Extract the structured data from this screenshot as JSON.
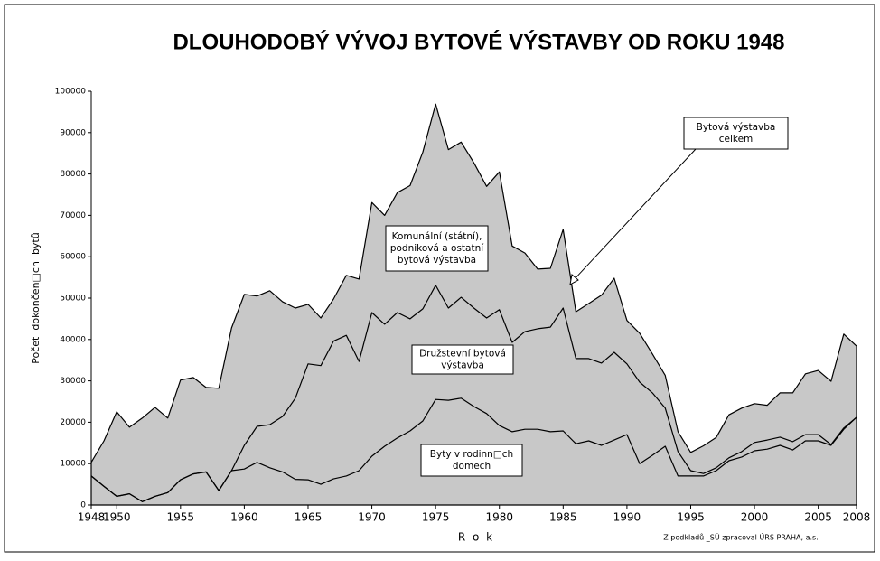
{
  "chart_data": {
    "type": "line",
    "title": "DLOUHODOBÝ VÝVOJ BYTOVÉ VÝSTAVBY OD ROKU 1948",
    "x_label": "R o k",
    "y_label": "Počet  dokončen□ch  bytů",
    "source": "Z podkladů _SÚ zpracoval ÚRS PRAHA, a.s.",
    "x": [
      1948,
      1949,
      1950,
      1951,
      1952,
      1953,
      1954,
      1955,
      1956,
      1957,
      1958,
      1959,
      1960,
      1961,
      1962,
      1963,
      1964,
      1965,
      1966,
      1967,
      1968,
      1969,
      1970,
      1971,
      1972,
      1973,
      1974,
      1975,
      1976,
      1977,
      1978,
      1979,
      1980,
      1981,
      1982,
      1983,
      1984,
      1985,
      1986,
      1987,
      1988,
      1989,
      1990,
      1991,
      1992,
      1993,
      1994,
      1995,
      1996,
      1997,
      1998,
      1999,
      2000,
      2001,
      2002,
      2003,
      2004,
      2005,
      2006,
      2007,
      2008
    ],
    "series": [
      {
        "color": "#c8c8c8",
        "fill": true,
        "values": [
          10300,
          15500,
          22500,
          18800,
          21000,
          23600,
          21000,
          30200,
          30800,
          28400,
          28200,
          42800,
          50900,
          50500,
          51800,
          49100,
          47600,
          48500,
          45200,
          49800,
          55500,
          54600,
          73100,
          70000,
          75500,
          77200,
          85300,
          96900,
          85900,
          87700,
          82700,
          77000,
          80500,
          62600,
          60900,
          57000,
          57200,
          66600,
          46700,
          48700,
          50700,
          54800,
          44600,
          41500,
          36500,
          31300,
          17700,
          12700,
          14300,
          16300,
          21800,
          23400,
          24500,
          24100,
          27100,
          27100,
          31700,
          32500,
          29900,
          41300,
          38400
        ]
      },
      {
        "color": "#000000",
        "fill": false,
        "values": [
          7000,
          4500,
          2100,
          2700,
          800,
          2100,
          3000,
          6100,
          7500,
          8000,
          3500,
          8300,
          14400,
          19000,
          19400,
          21400,
          25800,
          34100,
          33700,
          39600,
          41000,
          34700,
          46500,
          43700,
          46500,
          45000,
          47400,
          53100,
          47600,
          50200,
          47600,
          45200,
          47200,
          39300,
          41900,
          42600,
          43000,
          47600,
          35400,
          35400,
          34300,
          36900,
          34100,
          29700,
          27100,
          23400,
          12900,
          8300,
          7600,
          9000,
          11400,
          12900,
          15100,
          15700,
          16400,
          15300,
          17000,
          17000,
          14600,
          18600,
          21200
        ]
      },
      {
        "color": "#000000",
        "fill": false,
        "values": [
          7000,
          4500,
          2100,
          2700,
          800,
          2100,
          3000,
          6100,
          7500,
          8000,
          3500,
          8300,
          8700,
          10300,
          9000,
          8000,
          6200,
          6100,
          5000,
          6300,
          7000,
          8300,
          11800,
          14200,
          16200,
          17900,
          20300,
          25500,
          25300,
          25800,
          23800,
          22100,
          19200,
          17700,
          18300,
          18300,
          17700,
          17900,
          14800,
          15500,
          14400,
          15700,
          17000,
          10000,
          12000,
          14200,
          7000,
          7000,
          7000,
          8300,
          10700,
          11600,
          13100,
          13500,
          14400,
          13300,
          15500,
          15500,
          14400,
          18300,
          21200
        ]
      }
    ],
    "xlim": [
      1948,
      2008
    ],
    "xticks": [
      1948,
      1950,
      1955,
      1960,
      1965,
      1970,
      1975,
      1980,
      1985,
      1990,
      1995,
      2000,
      2005,
      2008
    ],
    "ylim": [
      0,
      100000
    ],
    "yticks": [
      0,
      10000,
      20000,
      30000,
      40000,
      50000,
      60000,
      70000,
      80000,
      90000,
      100000
    ],
    "annotations": [
      {
        "lines": [
          "Bytová výstavba",
          "celkem"
        ]
      },
      {
        "lines": [
          "Komunální (státní),",
          "podniková a ostatní",
          "bytová výstavba"
        ]
      },
      {
        "lines": [
          "Družstevní bytová",
          "výstavba"
        ]
      },
      {
        "lines": [
          "Byty v rodinn□ch",
          "domech"
        ]
      }
    ]
  }
}
